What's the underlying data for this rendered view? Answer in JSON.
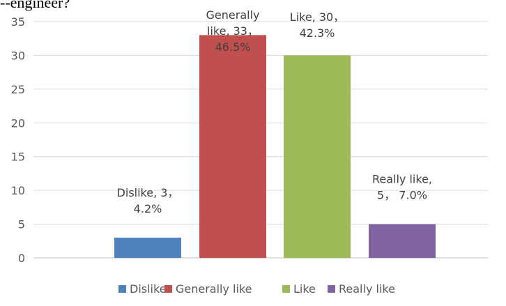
{
  "header": {
    "title": "--engineer?"
  },
  "chart_data": {
    "type": "bar",
    "title": "",
    "xlabel": "",
    "ylabel": "",
    "ylim": [
      0,
      35
    ],
    "y_ticks": [
      0,
      5,
      10,
      15,
      20,
      25,
      30,
      35
    ],
    "grid": true,
    "legend_position": "bottom",
    "categories": [
      "Dislike",
      "Generally like",
      "Like",
      "Really like"
    ],
    "values": [
      3,
      33,
      30,
      5
    ],
    "percents": [
      "4.2%",
      "46.5%",
      "42.3%",
      "7.0%"
    ],
    "colors": [
      "#4F81BD",
      "#C0504D",
      "#9BBB59",
      "#8064A2"
    ],
    "data_labels": [
      [
        "Dislike, 3，",
        "4.2%"
      ],
      [
        "Generally",
        "like, 33，",
        "46.5%"
      ],
      [
        "Like, 30，",
        "42.3%"
      ],
      [
        "Really like,",
        "5， 7.0%"
      ]
    ],
    "legend": [
      "Dislike",
      "Generally like",
      "Like",
      "Really like"
    ]
  }
}
